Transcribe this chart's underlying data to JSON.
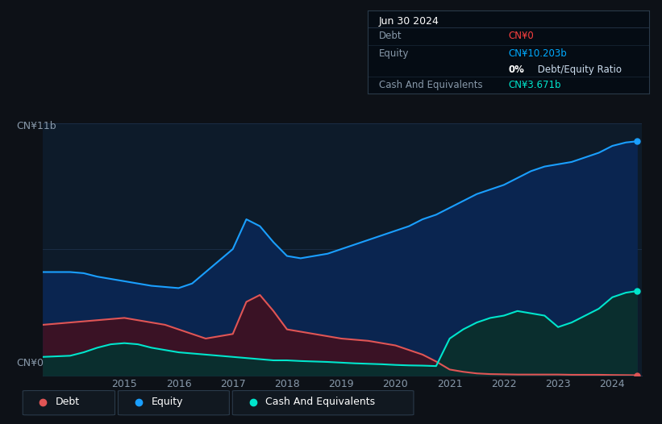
{
  "bg_color": "#0d1117",
  "plot_bg_color": "#0d1b2a",
  "grid_color": "#1a2d45",
  "ylabel_text": "CN¥11b",
  "ylabel0_text": "CN¥0",
  "xlabel_ticks": [
    2015,
    2016,
    2017,
    2018,
    2019,
    2020,
    2021,
    2022,
    2023,
    2024
  ],
  "tooltip_title": "Jun 30 2024",
  "tooltip_rows": [
    {
      "label": "Debt",
      "value": "CN¥0",
      "value_color": "#ff4040"
    },
    {
      "label": "Equity",
      "value": "CN¥10.203b",
      "value_color": "#00aaff"
    },
    {
      "label": "",
      "value": "0% Debt/Equity Ratio",
      "value_color": "#ffffff"
    },
    {
      "label": "Cash And Equivalents",
      "value": "CN¥3.671b",
      "value_color": "#00e5cc"
    }
  ],
  "equity_color": "#1a9fff",
  "equity_fill": "#0a2550",
  "debt_color": "#e05555",
  "debt_fill": "#3a1225",
  "cash_color": "#00e5cc",
  "cash_fill": "#0a2e2e",
  "legend_items": [
    {
      "label": "Debt",
      "color": "#e05555"
    },
    {
      "label": "Equity",
      "color": "#1a9fff"
    },
    {
      "label": "Cash And Equivalents",
      "color": "#00e5cc"
    }
  ],
  "years": [
    2013.5,
    2014.0,
    2014.25,
    2014.5,
    2014.75,
    2015.0,
    2015.25,
    2015.5,
    2015.75,
    2016.0,
    2016.25,
    2016.5,
    2016.75,
    2017.0,
    2017.25,
    2017.5,
    2017.75,
    2018.0,
    2018.25,
    2018.5,
    2018.75,
    2019.0,
    2019.25,
    2019.5,
    2019.75,
    2020.0,
    2020.25,
    2020.5,
    2020.75,
    2021.0,
    2021.25,
    2021.5,
    2021.75,
    2022.0,
    2022.25,
    2022.5,
    2022.75,
    2023.0,
    2023.25,
    2023.5,
    2023.75,
    2024.0,
    2024.25,
    2024.45
  ],
  "equity": [
    4.5,
    4.5,
    4.45,
    4.3,
    4.2,
    4.1,
    4.0,
    3.9,
    3.85,
    3.8,
    4.0,
    4.5,
    5.0,
    5.5,
    6.8,
    6.5,
    5.8,
    5.2,
    5.1,
    5.2,
    5.3,
    5.5,
    5.7,
    5.9,
    6.1,
    6.3,
    6.5,
    6.8,
    7.0,
    7.3,
    7.6,
    7.9,
    8.1,
    8.3,
    8.6,
    8.9,
    9.1,
    9.2,
    9.3,
    9.5,
    9.7,
    10.0,
    10.15,
    10.2
  ],
  "debt": [
    2.2,
    2.3,
    2.35,
    2.4,
    2.45,
    2.5,
    2.4,
    2.3,
    2.2,
    2.0,
    1.8,
    1.6,
    1.7,
    1.8,
    3.2,
    3.5,
    2.8,
    2.0,
    1.9,
    1.8,
    1.7,
    1.6,
    1.55,
    1.5,
    1.4,
    1.3,
    1.1,
    0.9,
    0.6,
    0.25,
    0.15,
    0.08,
    0.05,
    0.04,
    0.03,
    0.03,
    0.03,
    0.03,
    0.02,
    0.02,
    0.02,
    0.01,
    0.005,
    0.0
  ],
  "cash": [
    0.8,
    0.85,
    1.0,
    1.2,
    1.35,
    1.4,
    1.35,
    1.2,
    1.1,
    1.0,
    0.95,
    0.9,
    0.85,
    0.8,
    0.75,
    0.7,
    0.65,
    0.65,
    0.62,
    0.6,
    0.58,
    0.55,
    0.52,
    0.5,
    0.48,
    0.45,
    0.43,
    0.42,
    0.4,
    1.6,
    2.0,
    2.3,
    2.5,
    2.6,
    2.8,
    2.7,
    2.6,
    2.1,
    2.3,
    2.6,
    2.9,
    3.4,
    3.6,
    3.67
  ],
  "ylim": [
    0,
    11
  ],
  "xlim": [
    2013.5,
    2024.55
  ]
}
